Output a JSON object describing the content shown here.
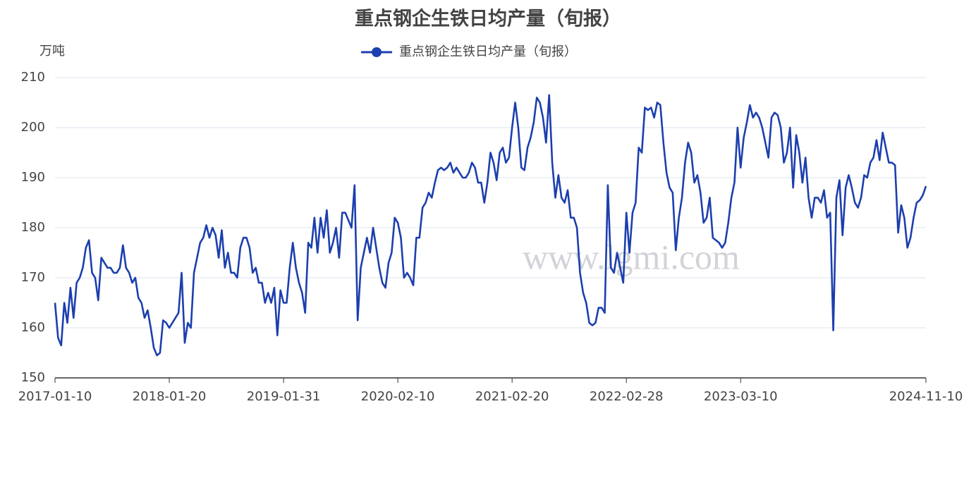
{
  "chart_data": {
    "type": "line",
    "title": "重点钢企生铁日均产量（旬报）",
    "y_unit": "万吨",
    "watermark": "www.lgmi.com",
    "categories": [
      "2017-01-10",
      null,
      null,
      null,
      null,
      null,
      null,
      null,
      null,
      null,
      null,
      null,
      null,
      null,
      null,
      null,
      null,
      null,
      null,
      null,
      null,
      null,
      null,
      null,
      null,
      null,
      null,
      null,
      null,
      null,
      null,
      null,
      null,
      null,
      null,
      null,
      null,
      "2018-01-20",
      null,
      null,
      null,
      null,
      null,
      null,
      null,
      null,
      null,
      null,
      null,
      null,
      null,
      null,
      null,
      null,
      null,
      null,
      null,
      null,
      null,
      null,
      null,
      null,
      null,
      null,
      null,
      null,
      null,
      null,
      null,
      null,
      null,
      null,
      null,
      null,
      "2019-01-31",
      null,
      null,
      null,
      null,
      null,
      null,
      null,
      null,
      null,
      null,
      null,
      null,
      null,
      null,
      null,
      null,
      null,
      null,
      null,
      null,
      null,
      null,
      null,
      null,
      null,
      null,
      null,
      null,
      null,
      null,
      null,
      null,
      null,
      null,
      null,
      null,
      "2020-02-10",
      null,
      null,
      null,
      null,
      null,
      null,
      null,
      null,
      null,
      null,
      null,
      null,
      null,
      null,
      null,
      null,
      null,
      null,
      null,
      null,
      null,
      null,
      null,
      null,
      null,
      null,
      null,
      null,
      null,
      null,
      null,
      null,
      null,
      null,
      null,
      null,
      "2021-02-20",
      null,
      null,
      null,
      null,
      null,
      null,
      null,
      null,
      null,
      null,
      null,
      null,
      null,
      null,
      null,
      null,
      null,
      null,
      null,
      null,
      null,
      null,
      null,
      null,
      null,
      null,
      null,
      null,
      null,
      null,
      null,
      null,
      null,
      null,
      null,
      null,
      "2022-02-28",
      null,
      null,
      null,
      null,
      null,
      null,
      null,
      null,
      null,
      null,
      null,
      null,
      null,
      null,
      null,
      null,
      null,
      null,
      null,
      null,
      null,
      null,
      null,
      null,
      null,
      null,
      null,
      null,
      null,
      null,
      null,
      null,
      null,
      null,
      null,
      null,
      "2023-03-10",
      null,
      null,
      null,
      null,
      null,
      null,
      null,
      null,
      null,
      null,
      null,
      null,
      null,
      null,
      null,
      null,
      null,
      null,
      null,
      null,
      null,
      null,
      null,
      null,
      null,
      null,
      null,
      null,
      null,
      null,
      null,
      null,
      null,
      null,
      null,
      null,
      null,
      null,
      null,
      null,
      null,
      null,
      null,
      null,
      null,
      null,
      null,
      null,
      null,
      null,
      null,
      null,
      null,
      null,
      null,
      null,
      null,
      null,
      null,
      "2024-11-10"
    ],
    "series": [
      {
        "name": "重点钢企生铁日均产量（旬报）",
        "color": "#1c3fae",
        "values": [
          165,
          158,
          156.5,
          165,
          161,
          168,
          162,
          169,
          170,
          172,
          176,
          177.5,
          171,
          170,
          165.5,
          174,
          173,
          172,
          172,
          171,
          171,
          172,
          176.5,
          172,
          171,
          169,
          170,
          166,
          165,
          162,
          163.5,
          160,
          156,
          154.5,
          155,
          161.5,
          161,
          160,
          161,
          162,
          163,
          171,
          157,
          161,
          160,
          171,
          174,
          177,
          178,
          180.5,
          178,
          180,
          178.5,
          174,
          179.5,
          172,
          175,
          171,
          171,
          170,
          176,
          178,
          178,
          176,
          171,
          172,
          169,
          169,
          165,
          167,
          165,
          168,
          158.5,
          167.5,
          165,
          165,
          172,
          177,
          172,
          169,
          167,
          163,
          177,
          176,
          182,
          175,
          182,
          178,
          183.5,
          175,
          177,
          180,
          174,
          183,
          183,
          181.5,
          180,
          188.5,
          161.5,
          172,
          175,
          178,
          175,
          180,
          176,
          172,
          169,
          168,
          173,
          175,
          182,
          181,
          178,
          170,
          171,
          170,
          168.5,
          178,
          178,
          184,
          185,
          187,
          186,
          189,
          191.5,
          192,
          191.5,
          192,
          193,
          191,
          192,
          191,
          190,
          190,
          191,
          193,
          192,
          189,
          189,
          185,
          189,
          195,
          193,
          189.5,
          195,
          196,
          193,
          194,
          200,
          205,
          200,
          192,
          191.5,
          196,
          198,
          201,
          206,
          205,
          202,
          197,
          206.5,
          193,
          186,
          190.5,
          186,
          185,
          187.5,
          182,
          182,
          180,
          171,
          167,
          165,
          161,
          160.5,
          161,
          164,
          164,
          163,
          188.5,
          172,
          171,
          175,
          172,
          169,
          183,
          175,
          183,
          185,
          196,
          195,
          204,
          203.5,
          204,
          202,
          205,
          204.5,
          197,
          191,
          188,
          187,
          175.5,
          182,
          186,
          193,
          197,
          195,
          189,
          190.5,
          187,
          181,
          182,
          186,
          178,
          177.5,
          177,
          176,
          177,
          181,
          186,
          189,
          200,
          192,
          198,
          201,
          204.5,
          202,
          203,
          202,
          200,
          197,
          194,
          202,
          203,
          202.5,
          200,
          193,
          195,
          200,
          188,
          198.5,
          195,
          189,
          194,
          186,
          182,
          186,
          186,
          185,
          187.5,
          182,
          183,
          159.5,
          186,
          189.5,
          178.5,
          188,
          190.5,
          188,
          185,
          184,
          186,
          190.5,
          190,
          193,
          194,
          197.5,
          193.5,
          199,
          196,
          193,
          193,
          192.5,
          179,
          184.5,
          182,
          176,
          178,
          182,
          185,
          185.5,
          186.5,
          188.3
        ]
      }
    ],
    "ylim": [
      150,
      210
    ],
    "yticks": [
      150,
      160,
      170,
      180,
      190,
      200,
      210
    ],
    "grid": true
  }
}
